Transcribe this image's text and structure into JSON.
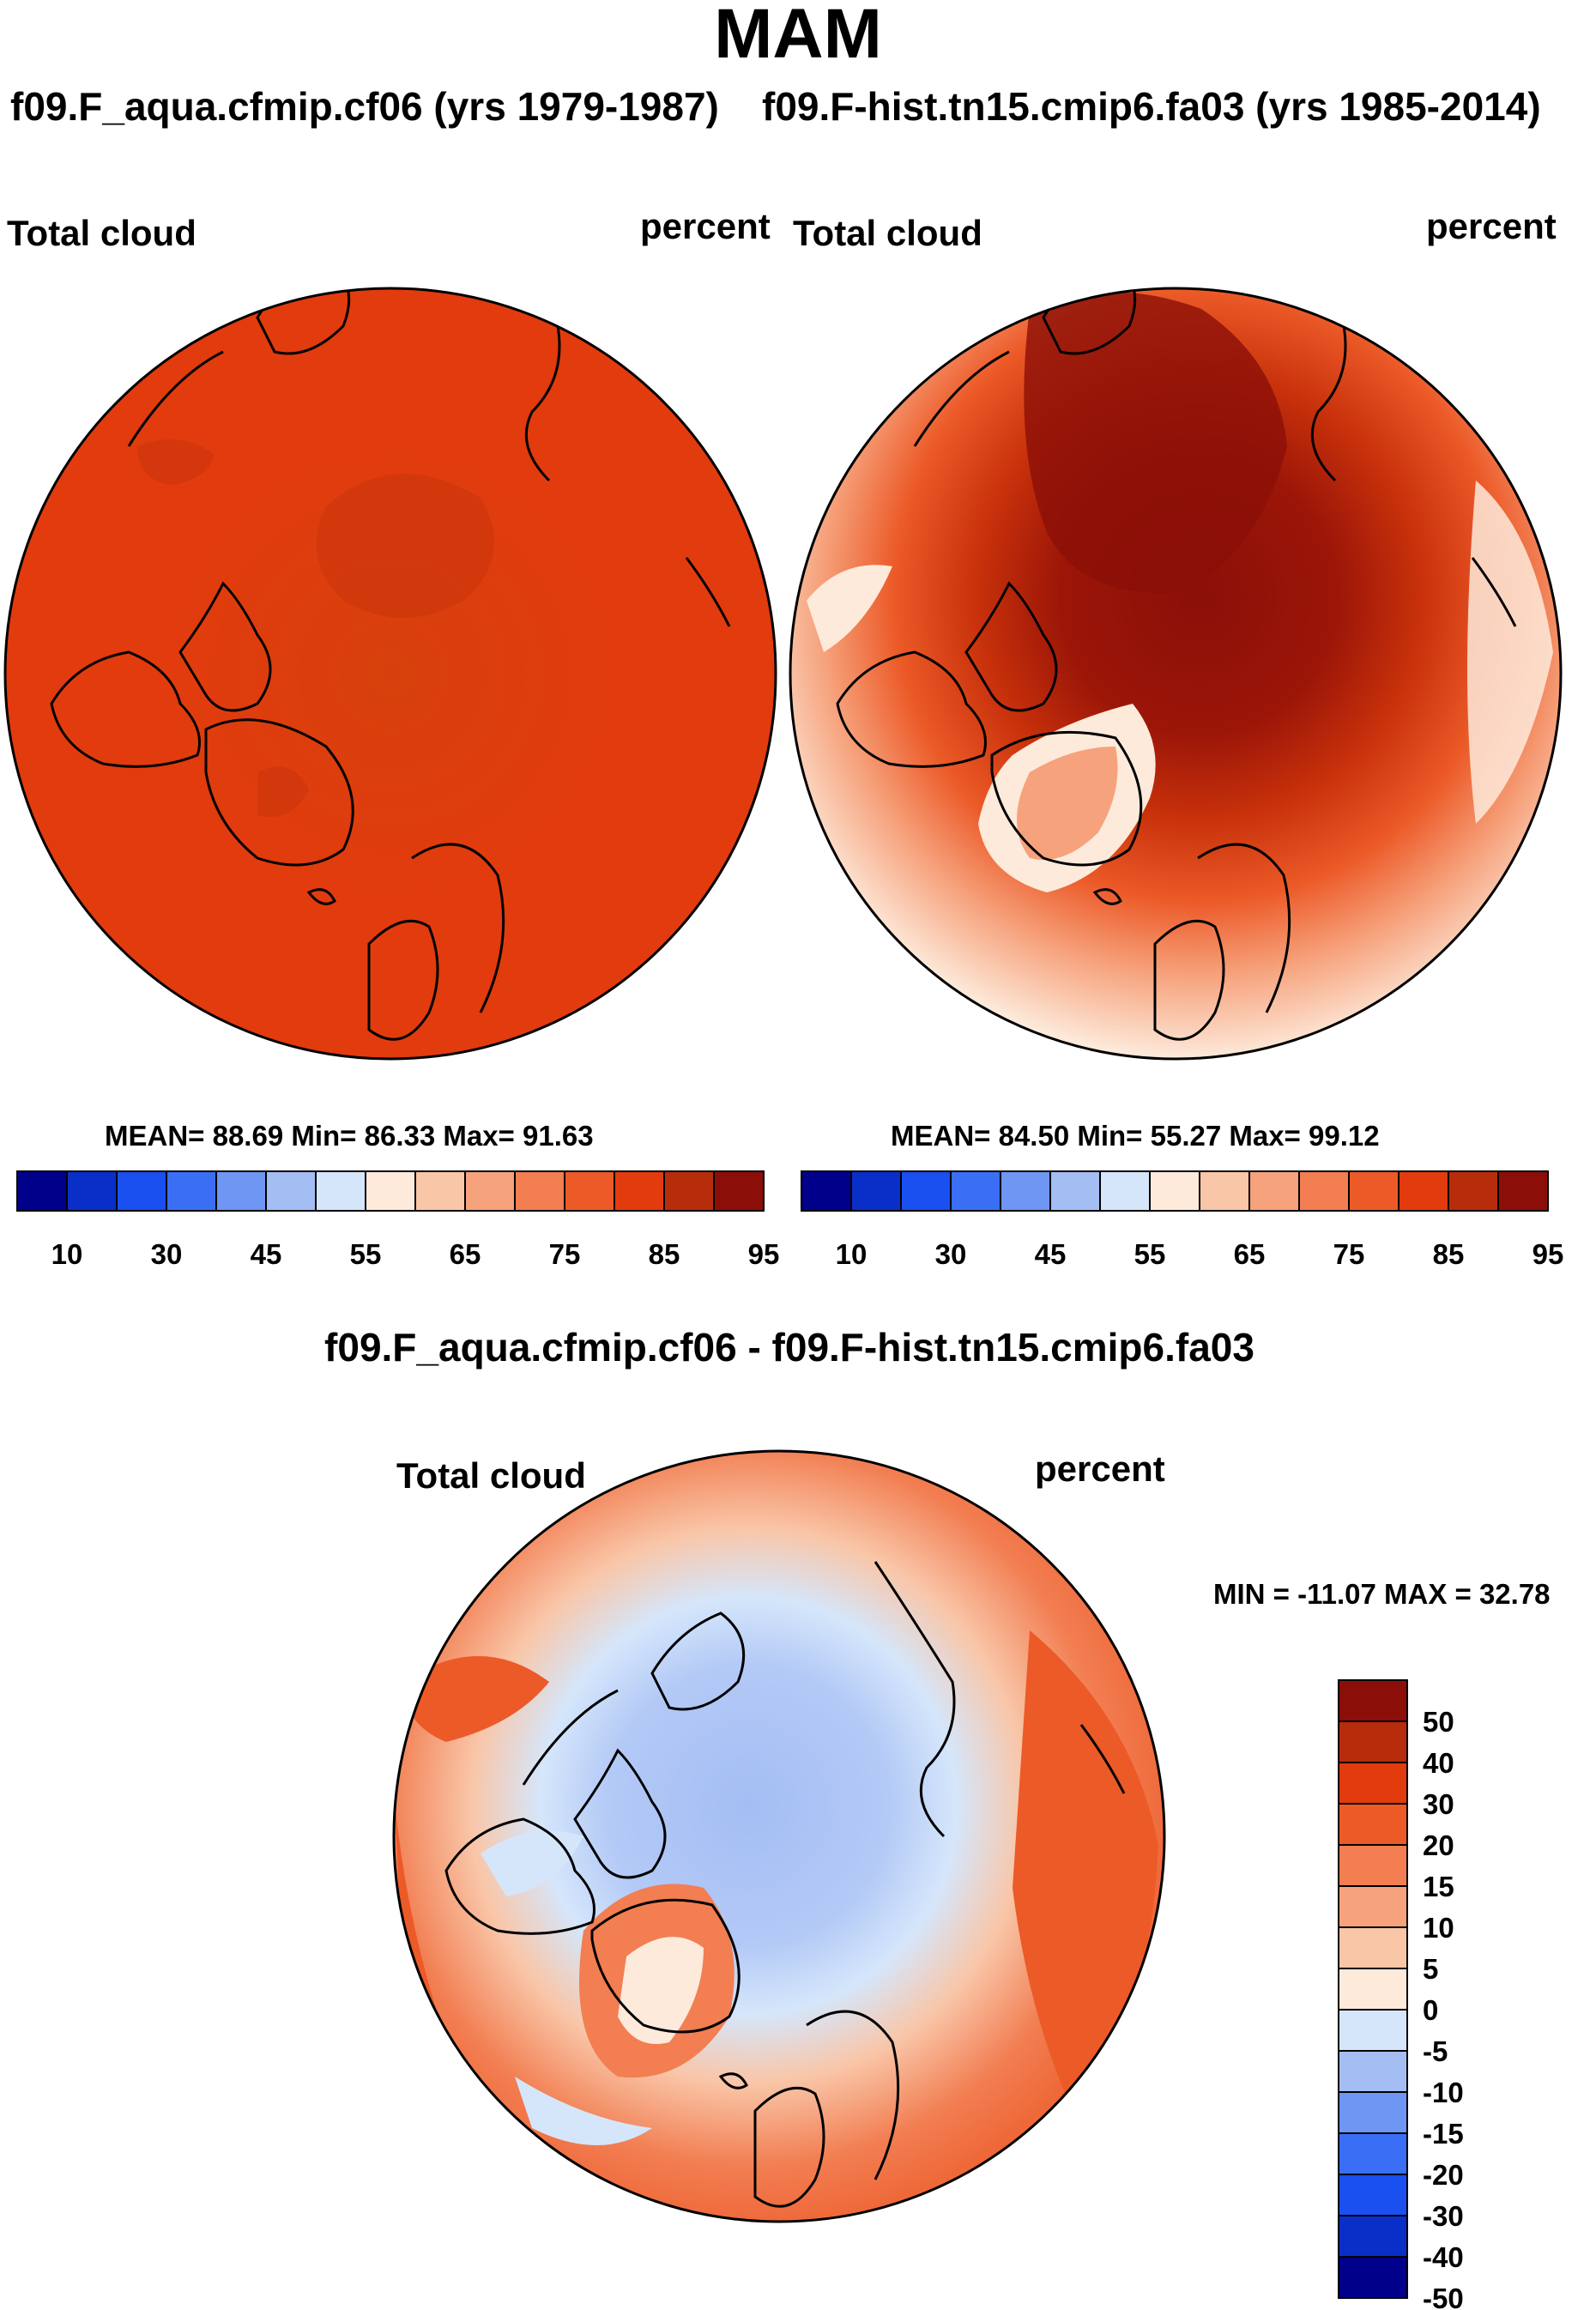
{
  "season": "MAM",
  "panels": [
    {
      "case_title": "f09.F_aqua.cfmip.cf06 (yrs 1979-1987)",
      "variable": "Total cloud",
      "units": "percent",
      "stats": "MEAN=  88.69  Min=  86.33  Max=  91.63",
      "labelbar_ticks": [
        "10",
        "30",
        "45",
        "55",
        "65",
        "75",
        "85",
        "95"
      ]
    },
    {
      "case_title": "f09.F-hist.tn15.cmip6.fa03 (yrs 1985-2014)",
      "variable": "Total cloud",
      "units": "percent",
      "stats": "MEAN=  84.50  Min=  55.27  Max=  99.12",
      "labelbar_ticks": [
        "10",
        "30",
        "45",
        "55",
        "65",
        "75",
        "85",
        "95"
      ]
    }
  ],
  "difference": {
    "title": "f09.F_aqua.cfmip.cf06 - f09.F-hist.tn15.cmip6.fa03",
    "variable": "Total cloud",
    "units": "percent",
    "minmax": "MIN = -11.07 MAX =  32.78",
    "labelbar_ticks": [
      "50",
      "40",
      "30",
      "20",
      "15",
      "10",
      "5",
      "0",
      "-5",
      "-10",
      "-15",
      "-20",
      "-30",
      "-40",
      "-50"
    ]
  },
  "chart_data": [
    {
      "type": "heatmap",
      "title": "f09.F_aqua.cfmip.cf06 (yrs 1979-1987)",
      "projection": "north polar stereographic",
      "field": "Total cloud",
      "units": "percent",
      "mean": 88.69,
      "min": 86.33,
      "max": 91.63,
      "contour_levels": [
        10,
        20,
        30,
        40,
        45,
        50,
        55,
        60,
        65,
        70,
        75,
        80,
        85,
        90,
        95
      ],
      "colors": [
        "#00008b",
        "#0a2fc8",
        "#1a4ff0",
        "#3a6ef5",
        "#6f96f2",
        "#a4bef4",
        "#d5e6fb",
        "#fdeadb",
        "#f9c6a8",
        "#f6a27c",
        "#f27e52",
        "#ec5a28",
        "#e23b0e",
        "#b72d0b",
        "#8b0f08"
      ]
    },
    {
      "type": "heatmap",
      "title": "f09.F-hist.tn15.cmip6.fa03 (yrs 1985-2014)",
      "projection": "north polar stereographic",
      "field": "Total cloud",
      "units": "percent",
      "mean": 84.5,
      "min": 55.27,
      "max": 99.12,
      "contour_levels": [
        10,
        20,
        30,
        40,
        45,
        50,
        55,
        60,
        65,
        70,
        75,
        80,
        85,
        90,
        95
      ],
      "colors": [
        "#00008b",
        "#0a2fc8",
        "#1a4ff0",
        "#3a6ef5",
        "#6f96f2",
        "#a4bef4",
        "#d5e6fb",
        "#fdeadb",
        "#f9c6a8",
        "#f6a27c",
        "#f27e52",
        "#ec5a28",
        "#e23b0e",
        "#b72d0b",
        "#8b0f08"
      ]
    },
    {
      "type": "heatmap",
      "title": "f09.F_aqua.cfmip.cf06 - f09.F-hist.tn15.cmip6.fa03",
      "projection": "north polar stereographic",
      "field": "Total cloud",
      "units": "percent",
      "min": -11.07,
      "max": 32.78,
      "contour_levels": [
        -50,
        -40,
        -30,
        -20,
        -15,
        -10,
        -5,
        0,
        5,
        10,
        15,
        20,
        30,
        40,
        50
      ],
      "colors": [
        "#00008b",
        "#0a2fc8",
        "#1a4ff0",
        "#3a6ef5",
        "#6f96f2",
        "#a4bef4",
        "#d5e6fb",
        "#fdeadb",
        "#f9c6a8",
        "#f6a27c",
        "#f27e52",
        "#ec5a28",
        "#e23b0e",
        "#b72d0b",
        "#8b0f08"
      ]
    }
  ]
}
